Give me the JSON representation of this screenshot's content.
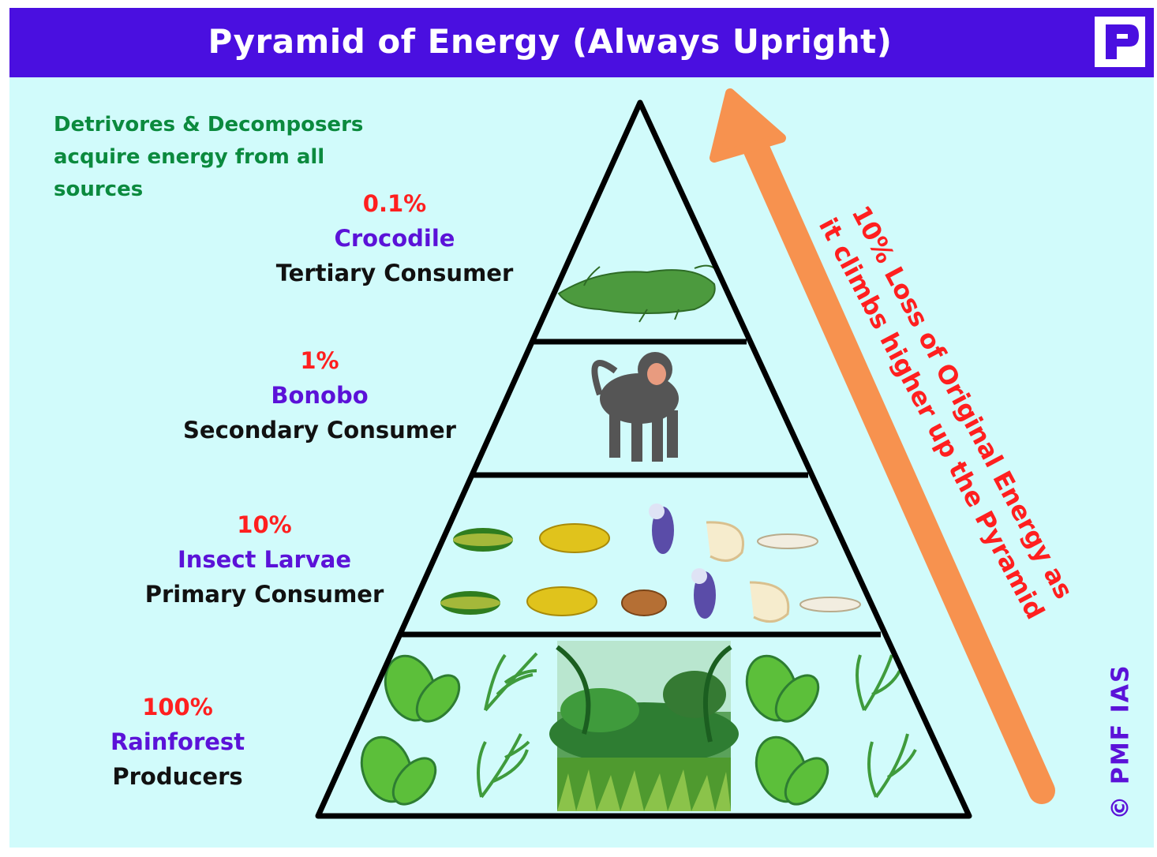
{
  "header": {
    "title": "Pyramid of Energy (Always Upright)",
    "logo_icon": "pmf-p-logo-icon"
  },
  "note": {
    "lines": [
      "Detrivores & Decomposers",
      "acquire energy from all",
      "sources"
    ]
  },
  "levels": [
    {
      "percent": "0.1%",
      "organism": "Crocodile",
      "role": "Tertiary Consumer",
      "icon": "crocodile-icon"
    },
    {
      "percent": "1%",
      "organism": "Bonobo",
      "role": "Secondary Consumer",
      "icon": "bonobo-icon"
    },
    {
      "percent": "10%",
      "organism": "Insect Larvae",
      "role": "Primary Consumer",
      "icon": "insect-larvae-icon"
    },
    {
      "percent": "100%",
      "organism": "Rainforest",
      "role": "Producers",
      "icon": "rainforest-icon"
    }
  ],
  "arrow": {
    "line1": "10% Loss of Original Energy as",
    "line2": "it climbs higher up the Pyramid"
  },
  "copyright": "© PMF IAS",
  "colors": {
    "header": "#4a0fe0",
    "background": "#d1fbfb",
    "percent": "#ff1f1f",
    "organism": "#5b12d8",
    "note": "#0b8a3e",
    "arrow": "#f7924f"
  }
}
